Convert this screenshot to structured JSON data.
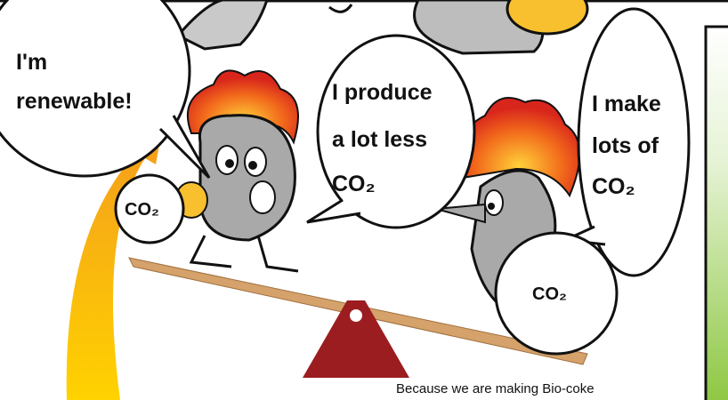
{
  "bubbles": [
    {
      "lines": [
        "I'm",
        "renewable!"
      ]
    },
    {
      "lines": [
        "I produce",
        "a lot less",
        "CO₂"
      ]
    },
    {
      "lines": [
        "I make",
        "lots of",
        "CO₂"
      ]
    }
  ],
  "bags": [
    {
      "label": "CO₂"
    },
    {
      "label": "CO₂"
    }
  ],
  "caption": "Because we are making Bio-coke"
}
